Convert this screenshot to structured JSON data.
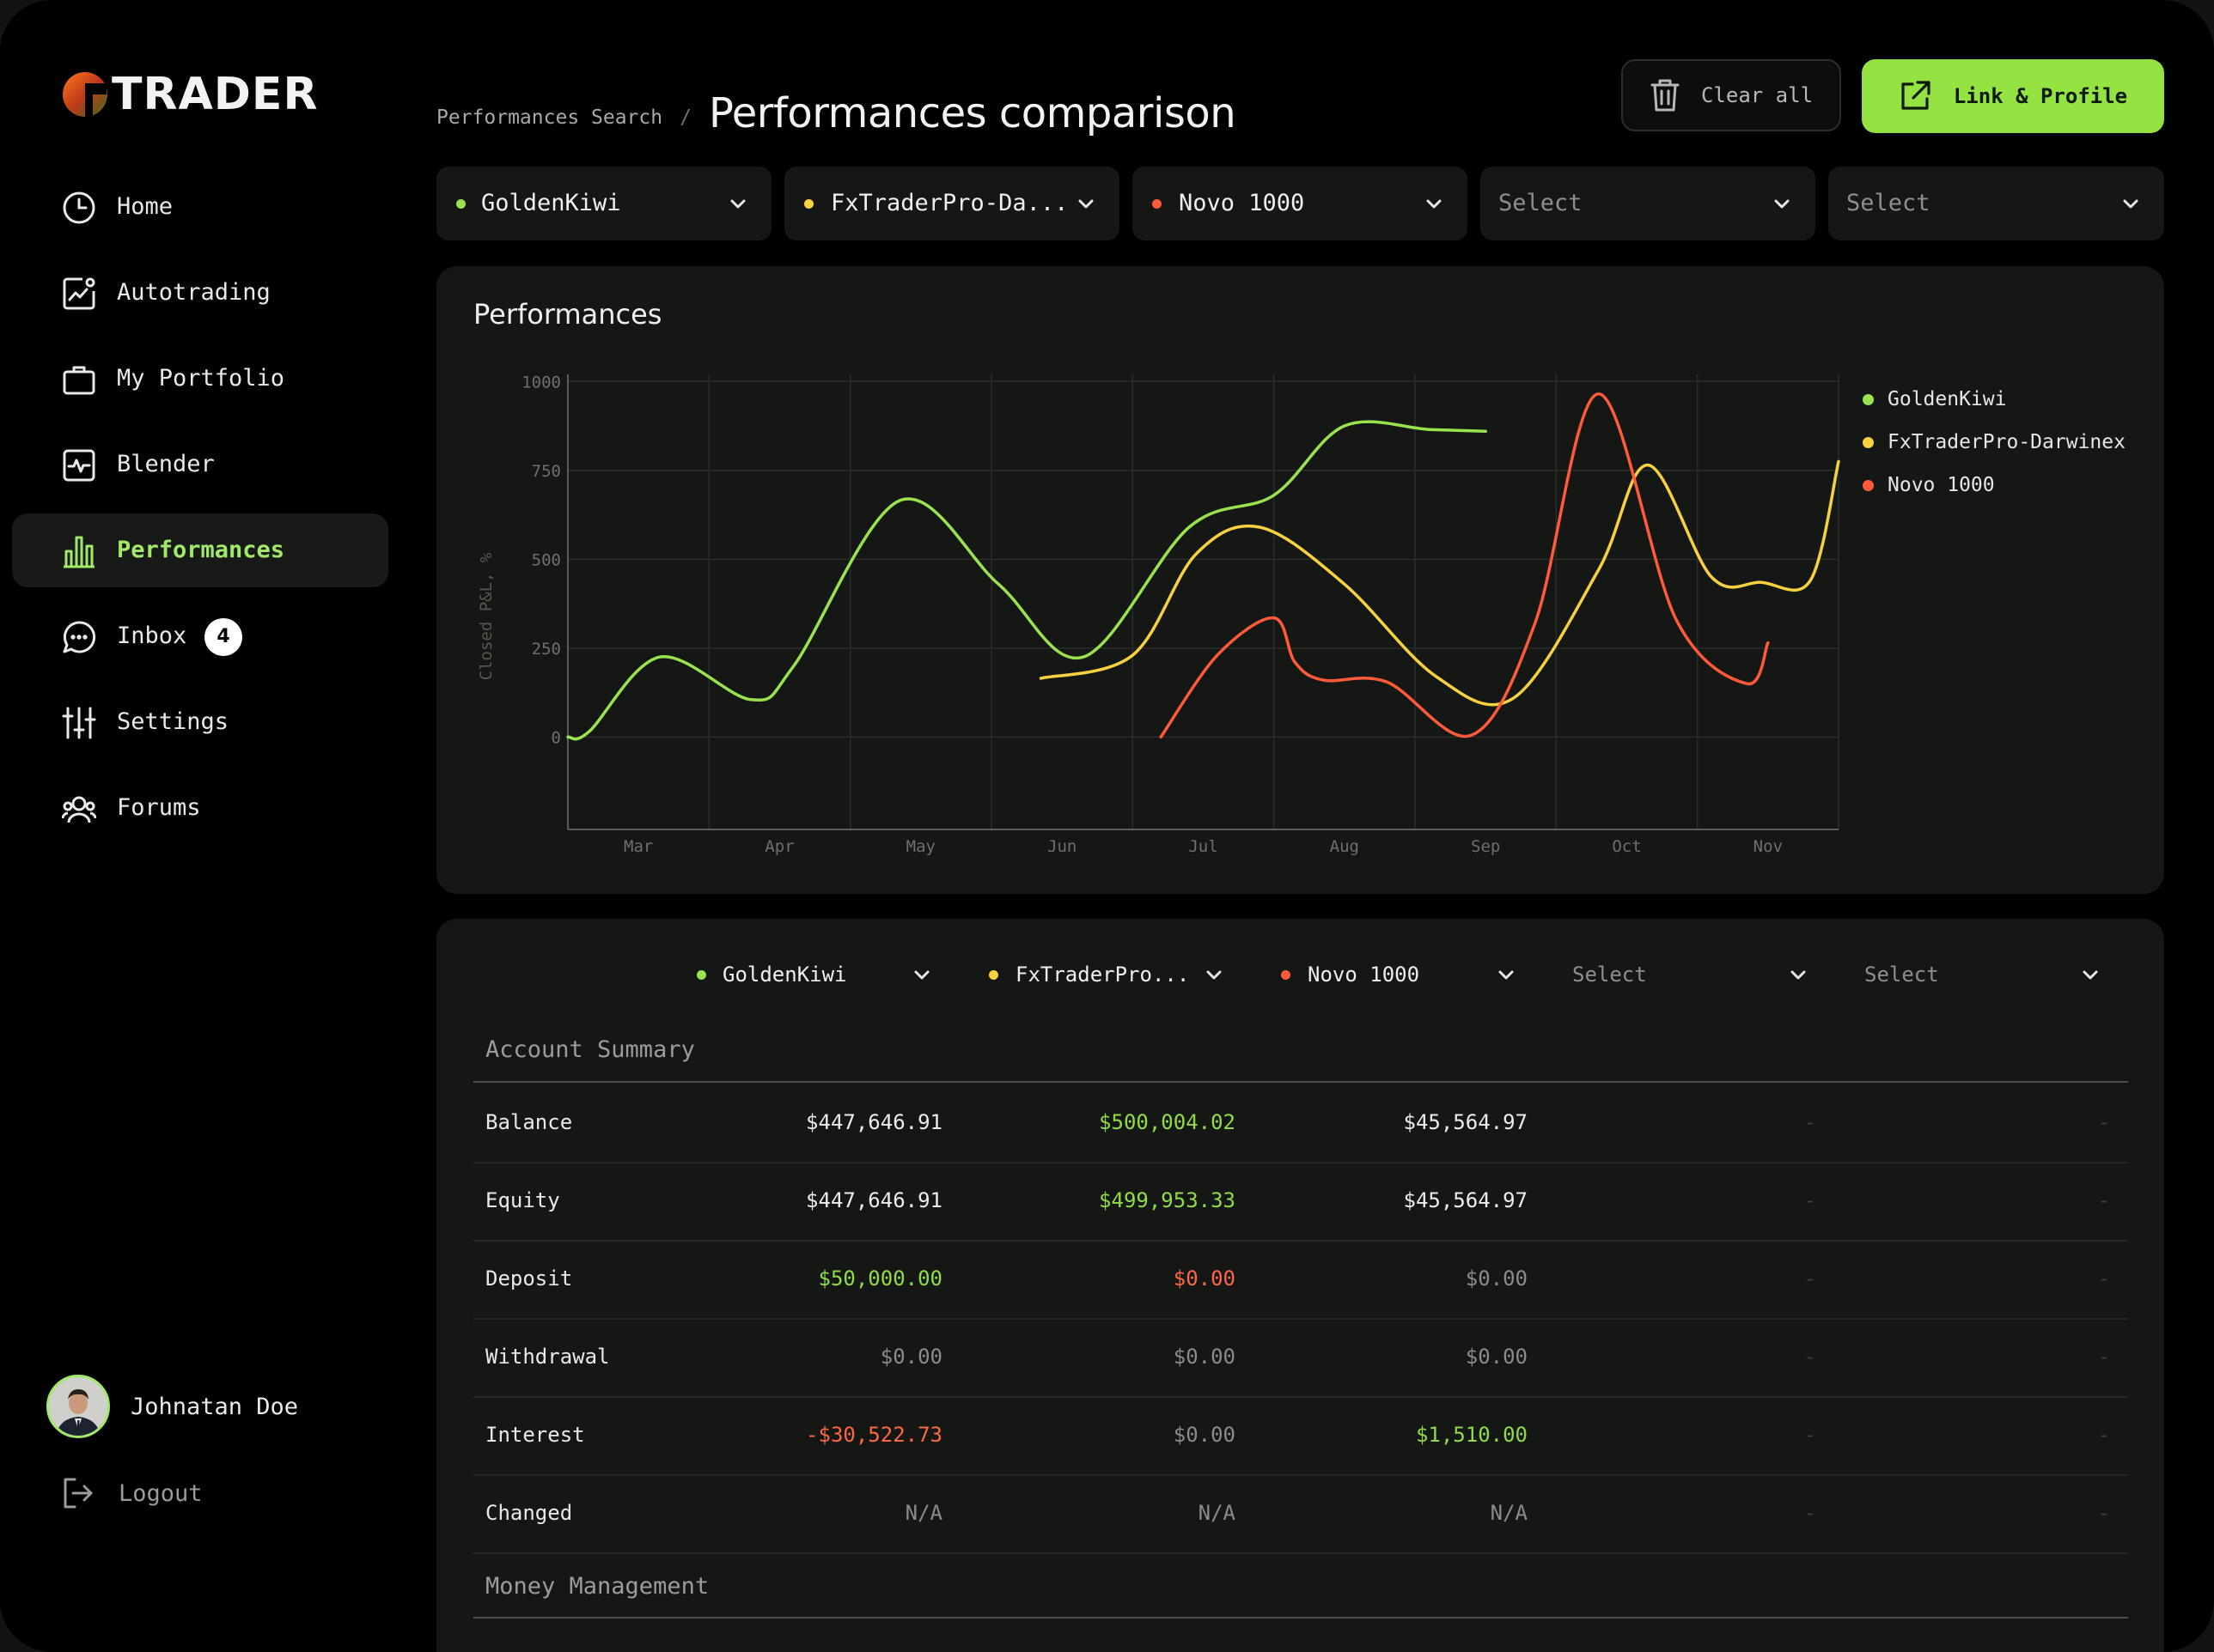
{
  "app": {
    "logo_text": "TRADER"
  },
  "sidebar": {
    "items": [
      {
        "label": "Home",
        "icon": "clock-icon",
        "active": false
      },
      {
        "label": "Autotrading",
        "icon": "chart-frame-icon",
        "active": false
      },
      {
        "label": "My Portfolio",
        "icon": "briefcase-icon",
        "active": false
      },
      {
        "label": "Blender",
        "icon": "pulse-icon",
        "active": false
      },
      {
        "label": "Performances",
        "icon": "bar-chart-icon",
        "active": true
      },
      {
        "label": "Inbox",
        "icon": "chat-bubble-icon",
        "active": false,
        "badge": "4"
      },
      {
        "label": "Settings",
        "icon": "sliders-icon",
        "active": false
      },
      {
        "label": "Forums",
        "icon": "users-icon",
        "active": false
      }
    ],
    "user": {
      "name": "Johnatan Doe"
    },
    "logout_label": "Logout"
  },
  "header": {
    "breadcrumb_parent": "Performances Search",
    "breadcrumb_sep": "/",
    "title": "Performances comparison",
    "clear_label": "Clear all",
    "link_label": "Link & Profile"
  },
  "top_selects": [
    {
      "label": "GoldenKiwi",
      "color": "#9be24f",
      "placeholder": false
    },
    {
      "label": "FxTraderPro-Da...",
      "color": "#f7d23e",
      "placeholder": false
    },
    {
      "label": "Novo 1000",
      "color": "#ff5a3a",
      "placeholder": false
    },
    {
      "label": "Select",
      "placeholder": true
    },
    {
      "label": "Select",
      "placeholder": true
    }
  ],
  "chart_panel": {
    "title": "Performances"
  },
  "colors": {
    "accent": "#95e243",
    "goldenkiwi": "#9be24f",
    "fxtrader": "#f7d23e",
    "novo": "#ff5a3a"
  },
  "chart_data": {
    "type": "line",
    "title": "Performances",
    "ylabel": "Closed P&L, %",
    "xlabel": "",
    "ylim": [
      -260,
      1020
    ],
    "yticks": [
      0,
      250,
      500,
      750,
      1000
    ],
    "xticks": [
      "Mar",
      "Apr",
      "May",
      "Jun",
      "Jul",
      "Aug",
      "Sep",
      "Oct",
      "Nov"
    ],
    "grid": true,
    "legend_position": "right",
    "series": [
      {
        "name": "GoldenKiwi",
        "color": "#9be24f",
        "x": [
          -0.5,
          -0.35,
          0.15,
          0.8,
          1.1,
          1.85,
          2.55,
          3.15,
          3.9,
          4.5,
          5.0,
          5.6,
          6.0
        ],
        "y": [
          0,
          15,
          225,
          105,
          200,
          665,
          430,
          225,
          590,
          680,
          875,
          865,
          860
        ]
      },
      {
        "name": "FxTraderPro-Darwinex",
        "color": "#f7d23e",
        "x": [
          2.85,
          3.5,
          3.95,
          4.4,
          5.0,
          5.65,
          6.2,
          6.8,
          7.15,
          7.6,
          7.95,
          8.3,
          8.5
        ],
        "y": [
          165,
          230,
          515,
          590,
          430,
          170,
          110,
          470,
          765,
          450,
          435,
          440,
          775
        ]
      },
      {
        "name": "Novo 1000",
        "color": "#ff5a3a",
        "x": [
          3.7,
          4.1,
          4.5,
          4.65,
          4.85,
          5.3,
          5.9,
          6.35,
          6.8,
          7.35,
          7.85,
          8.0
        ],
        "y": [
          0,
          230,
          335,
          210,
          160,
          155,
          5,
          320,
          965,
          330,
          150,
          265
        ]
      }
    ]
  },
  "table": {
    "selects": [
      {
        "label": "GoldenKiwi",
        "color": "#9be24f",
        "placeholder": false
      },
      {
        "label": "FxTraderPro...",
        "color": "#f7d23e",
        "placeholder": false
      },
      {
        "label": "Novo 1000",
        "color": "#ff5a3a",
        "placeholder": false
      },
      {
        "label": "Select",
        "placeholder": true
      },
      {
        "label": "Select",
        "placeholder": true
      }
    ],
    "account_summary_title": "Account Summary",
    "money_management_title": "Money Management",
    "rows": [
      {
        "label": "Balance",
        "values": [
          {
            "text": "$447,646.91",
            "tone": "white"
          },
          {
            "text": "$500,004.02",
            "tone": "green"
          },
          {
            "text": "$45,564.97",
            "tone": "white"
          },
          {
            "text": "-",
            "tone": "dim"
          },
          {
            "text": "-",
            "tone": "dim"
          }
        ]
      },
      {
        "label": "Equity",
        "values": [
          {
            "text": "$447,646.91",
            "tone": "white"
          },
          {
            "text": "$499,953.33",
            "tone": "green"
          },
          {
            "text": "$45,564.97",
            "tone": "white"
          },
          {
            "text": "-",
            "tone": "dim"
          },
          {
            "text": "-",
            "tone": "dim"
          }
        ]
      },
      {
        "label": "Deposit",
        "values": [
          {
            "text": "$50,000.00",
            "tone": "green"
          },
          {
            "text": "$0.00",
            "tone": "red"
          },
          {
            "text": "$0.00",
            "tone": "grey"
          },
          {
            "text": "-",
            "tone": "dim"
          },
          {
            "text": "-",
            "tone": "dim"
          }
        ]
      },
      {
        "label": "Withdrawal",
        "values": [
          {
            "text": "$0.00",
            "tone": "grey"
          },
          {
            "text": "$0.00",
            "tone": "grey"
          },
          {
            "text": "$0.00",
            "tone": "grey"
          },
          {
            "text": "-",
            "tone": "dim"
          },
          {
            "text": "-",
            "tone": "dim"
          }
        ]
      },
      {
        "label": "Interest",
        "values": [
          {
            "text": "-$30,522.73",
            "tone": "red"
          },
          {
            "text": "$0.00",
            "tone": "grey"
          },
          {
            "text": "$1,510.00",
            "tone": "green"
          },
          {
            "text": "-",
            "tone": "dim"
          },
          {
            "text": "-",
            "tone": "dim"
          }
        ]
      },
      {
        "label": "Changed",
        "values": [
          {
            "text": "N/A",
            "tone": "grey"
          },
          {
            "text": "N/A",
            "tone": "grey"
          },
          {
            "text": "N/A",
            "tone": "grey"
          },
          {
            "text": "-",
            "tone": "dim"
          },
          {
            "text": "-",
            "tone": "dim"
          }
        ]
      }
    ]
  }
}
